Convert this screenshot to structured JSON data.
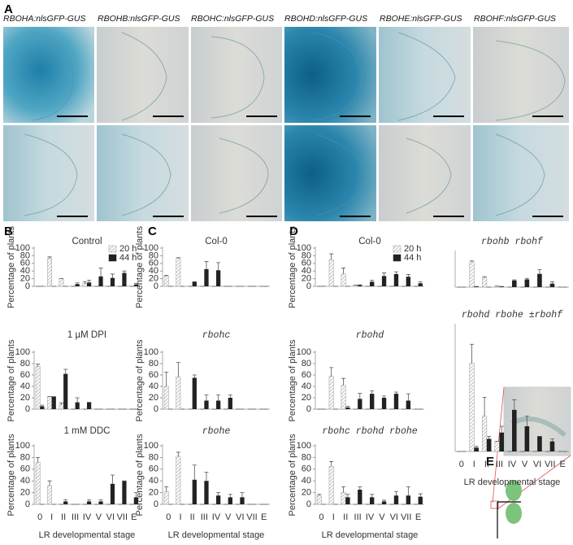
{
  "figure": {
    "panel_labels": [
      "A",
      "B",
      "C",
      "D",
      "E"
    ],
    "image_labels": [
      "RBOHA:nlsGFP-GUS",
      "RBOHB:nlsGFP-GUS",
      "RBOHC:nlsGFP-GUS",
      "RBOHD:nlsGFP-GUS",
      "RBOHE:nlsGFP-GUS",
      "RBOHF:nlsGFP-GUS"
    ]
  },
  "chart_data": [
    {
      "type": "bar",
      "title": "Control",
      "ylabel": "Percentage of plants",
      "ylim": [
        0,
        100
      ],
      "yticks": [
        0,
        20,
        40,
        60,
        80,
        100
      ],
      "series": [
        {
          "name": "20 h",
          "color": "#999999",
          "pattern": "hatch",
          "values": [
            0,
            73,
            20,
            0,
            7,
            0,
            0,
            0,
            0
          ],
          "errors": [
            0,
            4,
            0,
            0,
            5,
            0,
            0,
            0,
            0
          ]
        },
        {
          "name": "44 h",
          "color": "#222222",
          "values": [
            0,
            0,
            0,
            6,
            10,
            26,
            22,
            35,
            5
          ],
          "errors": [
            0,
            0,
            0,
            3,
            6,
            22,
            10,
            5,
            3
          ]
        }
      ]
    },
    {
      "type": "bar",
      "title": "1 µM DPI",
      "ylabel": "Percentage of plants",
      "ylim": [
        0,
        100
      ],
      "yticks": [
        0,
        20,
        40,
        60,
        80,
        100
      ],
      "series": [
        {
          "color": "#999999",
          "pattern": "hatch",
          "values": [
            75,
            22,
            8,
            0,
            0,
            0,
            0,
            0,
            0
          ],
          "errors": [
            4,
            0,
            3,
            0,
            0,
            0,
            0,
            0,
            0
          ]
        },
        {
          "color": "#222222",
          "values": [
            5,
            22,
            62,
            12,
            12,
            0,
            0,
            0,
            0
          ],
          "errors": [
            2,
            0,
            8,
            8,
            0,
            0,
            0,
            0,
            0
          ]
        }
      ]
    },
    {
      "type": "bar",
      "title": "1 mM DDC",
      "ylabel": "Percentage of plants",
      "ylim": [
        0,
        100
      ],
      "yticks": [
        0,
        20,
        40,
        60,
        80,
        100
      ],
      "categories": [
        "0",
        "I",
        "II",
        "III",
        "IV",
        "V",
        "VI",
        "VII",
        "E"
      ],
      "xlabel": "LR developmental stage",
      "series": [
        {
          "color": "#999999",
          "pattern": "hatch",
          "values": [
            72,
            32,
            0,
            0,
            0,
            0,
            0,
            0,
            0
          ],
          "errors": [
            8,
            8,
            0,
            0,
            0,
            0,
            0,
            0,
            0
          ]
        },
        {
          "color": "#222222",
          "values": [
            0,
            0,
            5,
            0,
            5,
            5,
            35,
            40,
            12
          ],
          "errors": [
            0,
            0,
            3,
            0,
            3,
            3,
            15,
            0,
            8
          ]
        }
      ]
    },
    {
      "type": "bar",
      "title": "Col-0",
      "ylabel": "Percentage of plants",
      "ylim": [
        0,
        100
      ],
      "yticks": [
        0,
        20,
        40,
        60,
        80,
        100
      ],
      "series": [
        {
          "color": "#999999",
          "pattern": "hatch",
          "values": [
            27,
            73,
            0,
            0,
            0,
            0,
            0,
            0,
            0
          ],
          "errors": [
            2,
            2,
            0,
            0,
            0,
            0,
            0,
            0,
            0
          ]
        },
        {
          "color": "#222222",
          "values": [
            0,
            0,
            12,
            45,
            42,
            0,
            0,
            0,
            0
          ],
          "errors": [
            0,
            0,
            0,
            20,
            20,
            0,
            0,
            0,
            0
          ]
        }
      ]
    },
    {
      "type": "bar",
      "title": "rbohc",
      "ylabel": "Percentage of plants",
      "ylim": [
        0,
        100
      ],
      "yticks": [
        0,
        20,
        40,
        60,
        80,
        100
      ],
      "series": [
        {
          "color": "#999999",
          "pattern": "hatch",
          "values": [
            40,
            57,
            0,
            0,
            0,
            0,
            0,
            0,
            0
          ],
          "errors": [
            25,
            25,
            0,
            0,
            0,
            0,
            0,
            0,
            0
          ]
        },
        {
          "color": "#222222",
          "values": [
            0,
            0,
            55,
            15,
            15,
            20,
            0,
            0,
            0
          ],
          "errors": [
            0,
            0,
            5,
            10,
            10,
            5,
            0,
            0,
            0
          ]
        }
      ]
    },
    {
      "type": "bar",
      "title": "rbohe",
      "ylabel": "Percentage of plants",
      "ylim": [
        0,
        100
      ],
      "yticks": [
        0,
        20,
        40,
        60,
        80,
        100
      ],
      "categories": [
        "0",
        "I",
        "II",
        "III",
        "IV",
        "V",
        "VI",
        "VII",
        "E"
      ],
      "xlabel": "LR developmental stage",
      "series": [
        {
          "color": "#999999",
          "pattern": "hatch",
          "values": [
            22,
            82,
            0,
            0,
            0,
            0,
            0,
            0,
            0
          ],
          "errors": [
            8,
            7,
            0,
            0,
            0,
            0,
            0,
            0,
            0
          ]
        },
        {
          "color": "#222222",
          "values": [
            0,
            0,
            42,
            40,
            15,
            12,
            12,
            0,
            0
          ],
          "errors": [
            0,
            0,
            25,
            15,
            5,
            5,
            8,
            0,
            0
          ]
        }
      ]
    },
    {
      "type": "bar",
      "title": "Col-0",
      "ylabel": "Percentage of plants",
      "ylim": [
        0,
        100
      ],
      "yticks": [
        0,
        20,
        40,
        60,
        80,
        100
      ],
      "series": [
        {
          "name": "20 h",
          "color": "#999999",
          "pattern": "hatch",
          "values": [
            0,
            70,
            33,
            3,
            0,
            0,
            0,
            0,
            0
          ],
          "errors": [
            0,
            15,
            15,
            0,
            0,
            0,
            0,
            0,
            0
          ]
        },
        {
          "name": "44 h",
          "color": "#222222",
          "values": [
            0,
            0,
            0,
            3,
            12,
            27,
            32,
            25,
            8
          ],
          "errors": [
            0,
            0,
            0,
            1,
            4,
            8,
            6,
            6,
            4
          ]
        }
      ]
    },
    {
      "type": "bar",
      "title": "rbohd",
      "ylabel": "Percentage of plants",
      "ylim": [
        0,
        100
      ],
      "yticks": [
        0,
        20,
        40,
        60,
        80,
        100
      ],
      "series": [
        {
          "color": "#999999",
          "pattern": "hatch",
          "values": [
            0,
            58,
            42,
            0,
            0,
            0,
            0,
            0,
            0
          ],
          "errors": [
            0,
            15,
            12,
            0,
            0,
            0,
            0,
            0,
            0
          ]
        },
        {
          "color": "#222222",
          "values": [
            0,
            0,
            3,
            18,
            27,
            20,
            27,
            15,
            0
          ],
          "errors": [
            0,
            0,
            2,
            10,
            5,
            3,
            3,
            12,
            0
          ]
        }
      ]
    },
    {
      "type": "bar",
      "title": "rbohc rbohd rbohe",
      "ylabel": "Percentage of plants",
      "ylim": [
        0,
        100
      ],
      "yticks": [
        0,
        20,
        40,
        60,
        80,
        100
      ],
      "categories": [
        "0",
        "I",
        "II",
        "III",
        "IV",
        "V",
        "VI",
        "VII",
        "E"
      ],
      "xlabel": "LR developmental stage",
      "series": [
        {
          "color": "#999999",
          "pattern": "hatch",
          "values": [
            15,
            65,
            20,
            0,
            0,
            0,
            0,
            0,
            0
          ],
          "errors": [
            2,
            8,
            10,
            0,
            0,
            0,
            0,
            0,
            0
          ]
        },
        {
          "color": "#222222",
          "values": [
            0,
            0,
            12,
            25,
            12,
            5,
            15,
            15,
            13
          ],
          "errors": [
            0,
            0,
            5,
            5,
            5,
            2,
            7,
            15,
            5
          ]
        }
      ]
    },
    {
      "type": "bar",
      "title": "rbohb rbohf",
      "ylim": [
        0,
        100
      ],
      "series": [
        {
          "color": "#999999",
          "pattern": "hatch",
          "values": [
            0,
            72,
            28,
            3,
            0,
            0,
            0,
            0,
            0
          ],
          "errors": [
            0,
            3,
            2,
            0,
            0,
            0,
            0,
            0,
            0
          ]
        },
        {
          "color": "#222222",
          "values": [
            0,
            2,
            0,
            2,
            19,
            22,
            38,
            10,
            0
          ],
          "errors": [
            0,
            0,
            0,
            0,
            2,
            3,
            12,
            5,
            0
          ]
        }
      ]
    },
    {
      "type": "bar",
      "title": "rbohd rbohe ±rbohf",
      "ylim": [
        0,
        100
      ],
      "categories": [
        "0",
        "I",
        "II",
        "III",
        "IV",
        "V",
        "VI",
        "VII",
        "E"
      ],
      "xlabel": "LR developmental stage",
      "series": [
        {
          "color": "#999999",
          "pattern": "hatch",
          "values": [
            0,
            70,
            28,
            8,
            0,
            0,
            0,
            0,
            0
          ],
          "errors": [
            0,
            15,
            15,
            0,
            0,
            0,
            0,
            0,
            0
          ]
        },
        {
          "color": "#222222",
          "values": [
            0,
            3,
            10,
            15,
            33,
            20,
            12,
            8,
            0
          ],
          "errors": [
            0,
            1,
            2,
            5,
            8,
            8,
            0,
            2,
            0
          ]
        }
      ]
    }
  ]
}
